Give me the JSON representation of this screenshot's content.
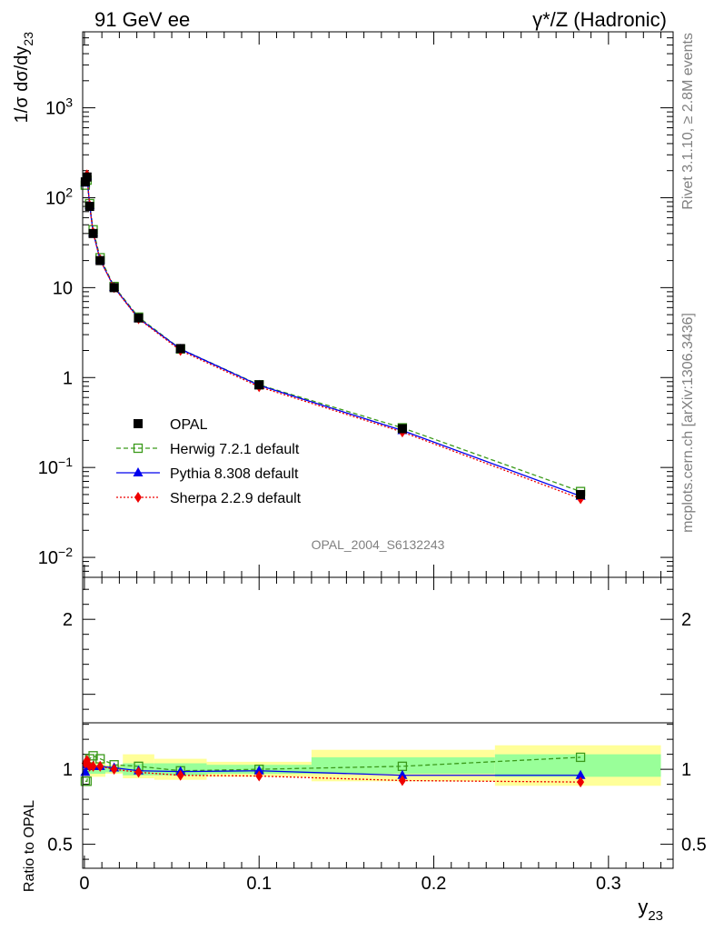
{
  "header": {
    "left": "91 GeV ee",
    "right": "γ*/Z (Hadronic)"
  },
  "side_text": {
    "rivet": "Rivet 3.1.10, ≥ 2.8M events",
    "mcplots": "mcplots.cern.ch [arXiv:1306.3436]"
  },
  "analysis_id": "OPAL_2004_S6132243",
  "colors": {
    "opal": "#000000",
    "herwig": "#3a9a1a",
    "pythia": "#0000ee",
    "sherpa": "#ee0000",
    "band_inner": "#99ff99",
    "band_outer": "#ffff99"
  },
  "chart_data": [
    {
      "type": "line",
      "panel": "main",
      "ylabel_main": "1/σ dσ/dy",
      "ylabel_sub": "23",
      "yscale": "log",
      "ylim": [
        0.006,
        7000
      ],
      "xlim": [
        -0.001,
        0.337
      ],
      "y_ticklabels": [
        {
          "value": 0.01,
          "base": "10",
          "exp": "−2"
        },
        {
          "value": 0.1,
          "base": "10",
          "exp": "−1"
        },
        {
          "value": 1,
          "base": "1",
          "exp": ""
        },
        {
          "value": 10,
          "base": "10",
          "exp": ""
        },
        {
          "value": 100,
          "base": "10",
          "exp": "2"
        },
        {
          "value": 1000,
          "base": "10",
          "exp": "3"
        }
      ],
      "legend": [
        {
          "label": "OPAL",
          "marker": "square-filled",
          "series": "opal"
        },
        {
          "label": "Herwig 7.2.1 default",
          "marker": "square-open",
          "series": "herwig"
        },
        {
          "label": "Pythia 8.308 default",
          "marker": "triangle",
          "series": "pythia"
        },
        {
          "label": "Sherpa 2.2.9 default",
          "marker": "diamond",
          "series": "sherpa"
        }
      ],
      "series": [
        {
          "name": "OPAL",
          "key": "opal",
          "x": [
            0.0005,
            0.0015,
            0.003,
            0.005,
            0.009,
            0.017,
            0.031,
            0.055,
            0.1,
            0.182,
            0.284
          ],
          "y": [
            150,
            170,
            80,
            40,
            20,
            10,
            4.6,
            2.1,
            0.83,
            0.27,
            0.05
          ]
        },
        {
          "name": "Herwig 7.2.1 default",
          "key": "herwig",
          "x": [
            0.0005,
            0.0015,
            0.003,
            0.005,
            0.009,
            0.017,
            0.031,
            0.055,
            0.1,
            0.182,
            0.284
          ],
          "y": [
            138,
            157,
            86,
            44,
            21.5,
            10.3,
            4.7,
            2.08,
            0.83,
            0.276,
            0.054
          ]
        },
        {
          "name": "Pythia 8.308 default",
          "key": "pythia",
          "x": [
            0.0005,
            0.0015,
            0.003,
            0.005,
            0.009,
            0.017,
            0.031,
            0.055,
            0.1,
            0.182,
            0.284
          ],
          "y": [
            146,
            175,
            82,
            41,
            20.4,
            10.1,
            4.55,
            2.07,
            0.82,
            0.258,
            0.048
          ]
        },
        {
          "name": "Sherpa 2.2.9 default",
          "key": "sherpa",
          "x": [
            0.0005,
            0.0015,
            0.003,
            0.005,
            0.009,
            0.017,
            0.031,
            0.055,
            0.1,
            0.182,
            0.284
          ],
          "y": [
            158,
            180,
            82,
            41,
            20.4,
            10.0,
            4.5,
            2.0,
            0.79,
            0.248,
            0.045
          ]
        }
      ]
    },
    {
      "type": "line",
      "panel": "ratio",
      "ylabel": "Ratio to OPAL",
      "ylim": [
        0.34,
        2.28
      ],
      "y_ticklabels": [
        {
          "value": 0.5,
          "label": "0.5"
        },
        {
          "value": 1,
          "label": "1"
        },
        {
          "value": 2,
          "label": "2"
        }
      ],
      "xlim": [
        -0.001,
        0.337
      ],
      "xlabel_main": "y",
      "xlabel_sub": "23",
      "x_ticklabels": [
        {
          "value": 0,
          "label": "0"
        },
        {
          "value": 0.1,
          "label": "0.1"
        },
        {
          "value": 0.2,
          "label": "0.2"
        },
        {
          "value": 0.3,
          "label": "0.3"
        }
      ],
      "bands": [
        {
          "x0": 0.0,
          "x1": 0.012,
          "inner": [
            0.97,
            1.03
          ],
          "outer": [
            0.95,
            1.05
          ]
        },
        {
          "x0": 0.012,
          "x1": 0.022,
          "inner": [
            0.98,
            1.02
          ],
          "outer": [
            0.97,
            1.03
          ]
        },
        {
          "x0": 0.022,
          "x1": 0.04,
          "inner": [
            0.96,
            1.04
          ],
          "outer": [
            0.94,
            1.1
          ]
        },
        {
          "x0": 0.04,
          "x1": 0.07,
          "inner": [
            0.96,
            1.04
          ],
          "outer": [
            0.93,
            1.07
          ]
        },
        {
          "x0": 0.07,
          "x1": 0.13,
          "inner": [
            0.97,
            1.03
          ],
          "outer": [
            0.95,
            1.05
          ]
        },
        {
          "x0": 0.13,
          "x1": 0.235,
          "inner": [
            0.97,
            1.08
          ],
          "outer": [
            0.92,
            1.13
          ]
        },
        {
          "x0": 0.235,
          "x1": 0.33,
          "inner": [
            0.95,
            1.1
          ],
          "outer": [
            0.89,
            1.16
          ]
        }
      ],
      "series": [
        {
          "name": "Herwig 7.2.1 default",
          "key": "herwig",
          "x": [
            0.0005,
            0.0015,
            0.003,
            0.005,
            0.009,
            0.017,
            0.031,
            0.055,
            0.1,
            0.182,
            0.284
          ],
          "y": [
            0.92,
            0.92,
            1.07,
            1.09,
            1.07,
            1.03,
            1.02,
            0.99,
            1.0,
            1.02,
            1.08
          ]
        },
        {
          "name": "Pythia 8.308 default",
          "key": "pythia",
          "x": [
            0.0005,
            0.0015,
            0.003,
            0.005,
            0.009,
            0.017,
            0.031,
            0.055,
            0.1,
            0.182,
            0.284
          ],
          "y": [
            0.98,
            1.03,
            1.02,
            1.02,
            1.02,
            1.01,
            0.99,
            0.985,
            0.99,
            0.96,
            0.96
          ]
        },
        {
          "name": "Sherpa 2.2.9 default",
          "key": "sherpa",
          "x": [
            0.0005,
            0.0015,
            0.003,
            0.005,
            0.009,
            0.017,
            0.031,
            0.055,
            0.1,
            0.182,
            0.284
          ],
          "y": [
            1.04,
            1.06,
            1.02,
            1.02,
            1.02,
            1.0,
            0.98,
            0.96,
            0.955,
            0.925,
            0.915
          ]
        }
      ]
    }
  ]
}
